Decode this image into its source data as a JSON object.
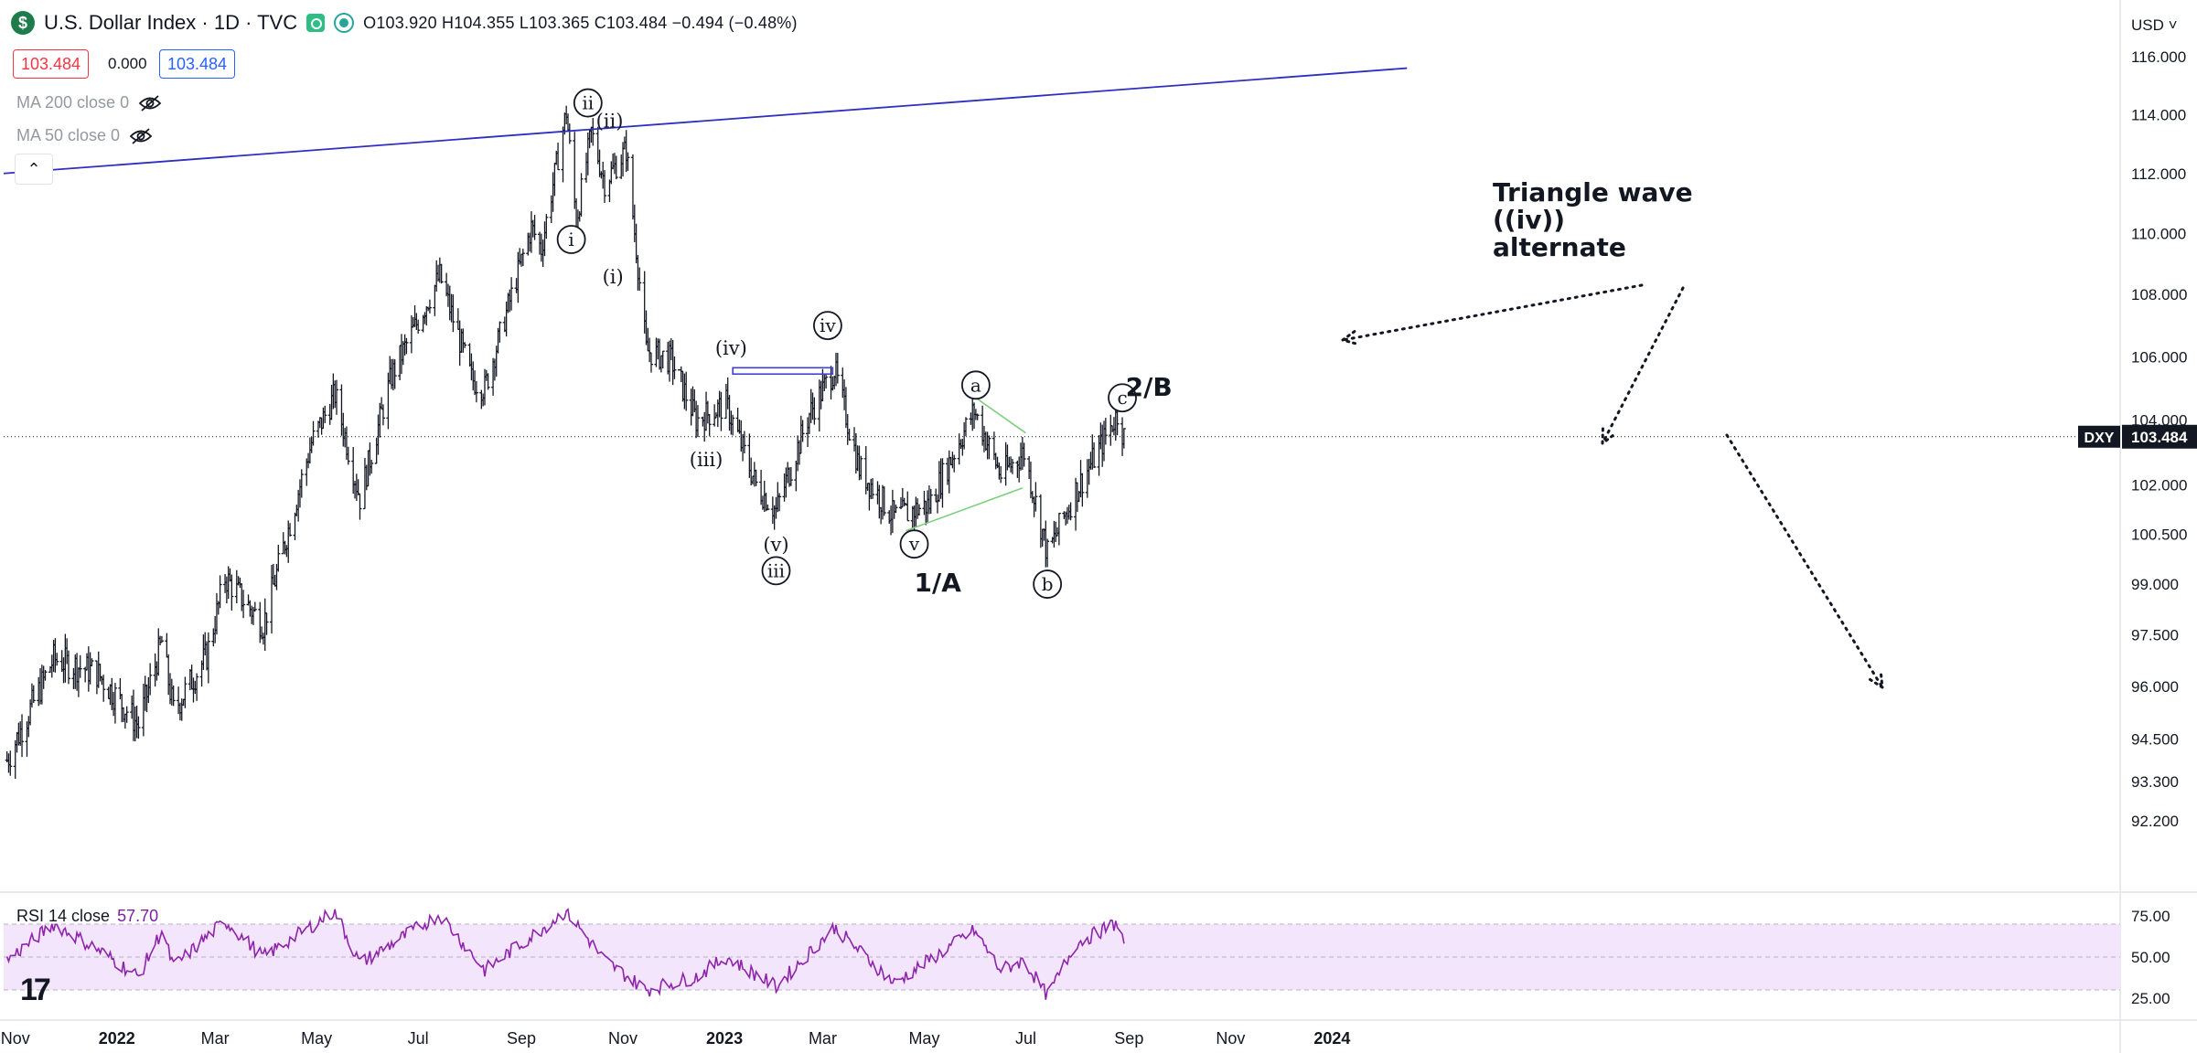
{
  "header": {
    "symbol_badge": "$",
    "title": "U.S. Dollar Index · 1D · TVC",
    "ohlc": "O103.920  H104.355  L103.365  C103.484  −0.494 (−0.48%)",
    "bid": "103.484",
    "spread": "0.000",
    "ask": "103.484",
    "currency": "USD"
  },
  "indicators": {
    "ma200": "MA 200 close 0",
    "ma50": "MA 50 close 0",
    "rsi_name": "RSI 14 close",
    "rsi_value": "57.70",
    "collapse_icon": "chevron-up-icon"
  },
  "colors": {
    "bars": "#131722",
    "trendline": "#2f2fbf",
    "triangle_lines": "#7ccf7c",
    "rsi_line": "#8e24aa",
    "rsi_band": "#f3e5fc",
    "price_tag_bg": "#131722",
    "bid_color": "#f23645",
    "ask_color": "#2962ff"
  },
  "chart_data": {
    "type": "ohlc-bar",
    "title": "U.S. Dollar Index · 1D · TVC",
    "price_axis_ticks": [
      "116.000",
      "114.000",
      "112.000",
      "110.000",
      "108.000",
      "106.000",
      "104.000",
      "102.000",
      "100.500",
      "99.000",
      "97.500",
      "96.000",
      "94.500",
      "93.300",
      "92.200"
    ],
    "time_axis_ticks": [
      "Nov",
      "2022",
      "Mar",
      "May",
      "Jul",
      "Sep",
      "Nov",
      "2023",
      "Mar",
      "May",
      "Jul",
      "Sep",
      "Nov",
      "2024"
    ],
    "price_series_anchors": [
      {
        "date": "2021-10-27",
        "close": 93.9
      },
      {
        "date": "2021-11-24",
        "close": 96.8
      },
      {
        "date": "2021-12-20",
        "close": 96.4
      },
      {
        "date": "2022-01-14",
        "close": 94.9
      },
      {
        "date": "2022-01-28",
        "close": 97.3
      },
      {
        "date": "2022-02-04",
        "close": 95.3
      },
      {
        "date": "2022-02-24",
        "close": 96.9
      },
      {
        "date": "2022-03-07",
        "close": 99.2
      },
      {
        "date": "2022-03-30",
        "close": 97.8
      },
      {
        "date": "2022-04-28",
        "close": 103.3
      },
      {
        "date": "2022-05-12",
        "close": 104.8
      },
      {
        "date": "2022-05-27",
        "close": 101.6
      },
      {
        "date": "2022-06-15",
        "close": 105.4
      },
      {
        "date": "2022-07-14",
        "close": 108.6
      },
      {
        "date": "2022-08-02",
        "close": 105.3
      },
      {
        "date": "2022-08-10",
        "close": 105.0
      },
      {
        "date": "2022-09-07",
        "close": 110.2
      },
      {
        "date": "2022-09-13",
        "close": 109.5
      },
      {
        "date": "2022-09-28",
        "close": 114.1
      },
      {
        "date": "2022-10-04",
        "close": 110.4
      },
      {
        "date": "2022-10-13",
        "close": 113.4
      },
      {
        "date": "2022-10-21",
        "close": 111.7
      },
      {
        "date": "2022-11-03",
        "close": 112.8
      },
      {
        "date": "2022-11-15",
        "close": 106.2
      },
      {
        "date": "2022-11-30",
        "close": 105.9
      },
      {
        "date": "2022-12-15",
        "close": 104.0
      },
      {
        "date": "2023-01-02",
        "close": 104.5
      },
      {
        "date": "2023-01-20",
        "close": 102.0
      },
      {
        "date": "2023-02-01",
        "close": 101.2
      },
      {
        "date": "2023-02-21",
        "close": 104.2
      },
      {
        "date": "2023-03-08",
        "close": 105.6
      },
      {
        "date": "2023-03-23",
        "close": 102.5
      },
      {
        "date": "2023-04-13",
        "close": 101.0
      },
      {
        "date": "2023-05-04",
        "close": 101.4
      },
      {
        "date": "2023-05-31",
        "close": 104.3
      },
      {
        "date": "2023-06-16",
        "close": 102.3
      },
      {
        "date": "2023-06-30",
        "close": 103.0
      },
      {
        "date": "2023-07-14",
        "close": 99.9
      },
      {
        "date": "2023-07-31",
        "close": 101.8
      },
      {
        "date": "2023-08-14",
        "close": 103.1
      },
      {
        "date": "2023-08-25",
        "close": 104.2
      },
      {
        "date": "2023-08-29",
        "close": 103.484
      }
    ],
    "last_price": {
      "label": "DXY",
      "value": "103.484"
    },
    "trendline": {
      "from": {
        "date": "2021-10-25",
        "price": 112.0
      },
      "to": {
        "date": "2024-02-15",
        "price": 115.6
      }
    },
    "wave_labels": [
      {
        "text": "i",
        "date": "2022-10-01",
        "price": 109.8,
        "circled": true
      },
      {
        "text": "ii",
        "date": "2022-10-11",
        "price": 114.4,
        "circled": true
      },
      {
        "text": "(ii)",
        "date": "2022-10-24",
        "price": 113.8,
        "circled": false
      },
      {
        "text": "(i)",
        "date": "2022-10-26",
        "price": 108.6,
        "circled": false
      },
      {
        "text": "(iv)",
        "date": "2023-01-05",
        "price": 106.3,
        "circled": false
      },
      {
        "text": "iv",
        "date": "2023-03-04",
        "price": 107.0,
        "circled": true
      },
      {
        "text": "(iii)",
        "date": "2022-12-21",
        "price": 102.8,
        "circled": false
      },
      {
        "text": "(v)",
        "date": "2023-02-01",
        "price": 100.2,
        "circled": false
      },
      {
        "text": "iii",
        "date": "2023-02-01",
        "price": 99.4,
        "circled": true
      },
      {
        "text": "v",
        "date": "2023-04-25",
        "price": 100.2,
        "circled": true
      },
      {
        "text": "1/A",
        "date": "2023-04-25",
        "price": 99.0,
        "circled": false
      },
      {
        "text": "a",
        "date": "2023-06-01",
        "price": 105.1,
        "circled": true
      },
      {
        "text": "b",
        "date": "2023-07-14",
        "price": 99.0,
        "circled": true
      },
      {
        "text": "c",
        "date": "2023-08-28",
        "price": 104.7,
        "circled": true
      },
      {
        "text": "2/B",
        "date": "2023-08-30",
        "price": 105.0,
        "circled": false
      }
    ],
    "annotations": [
      "Triangle wave",
      "((iv))",
      "alternate"
    ],
    "rsi": {
      "name": "RSI 14 close",
      "last": 57.7,
      "ticks": [
        "75.00",
        "50.00",
        "25.00"
      ],
      "band": [
        30,
        70
      ],
      "anchors": [
        {
          "date": "2021-10-27",
          "value": 48
        },
        {
          "date": "2021-11-24",
          "value": 70
        },
        {
          "date": "2021-12-20",
          "value": 55
        },
        {
          "date": "2022-01-14",
          "value": 38
        },
        {
          "date": "2022-01-28",
          "value": 66
        },
        {
          "date": "2022-02-04",
          "value": 44
        },
        {
          "date": "2022-03-07",
          "value": 72
        },
        {
          "date": "2022-03-30",
          "value": 50
        },
        {
          "date": "2022-05-12",
          "value": 78
        },
        {
          "date": "2022-05-27",
          "value": 46
        },
        {
          "date": "2022-07-14",
          "value": 76
        },
        {
          "date": "2022-08-10",
          "value": 42
        },
        {
          "date": "2022-09-28",
          "value": 78
        },
        {
          "date": "2022-10-21",
          "value": 48
        },
        {
          "date": "2022-11-15",
          "value": 30
        },
        {
          "date": "2022-12-15",
          "value": 38
        },
        {
          "date": "2023-01-02",
          "value": 50
        },
        {
          "date": "2023-02-01",
          "value": 32
        },
        {
          "date": "2023-03-08",
          "value": 68
        },
        {
          "date": "2023-04-13",
          "value": 34
        },
        {
          "date": "2023-05-31",
          "value": 66
        },
        {
          "date": "2023-06-16",
          "value": 42
        },
        {
          "date": "2023-06-30",
          "value": 48
        },
        {
          "date": "2023-07-14",
          "value": 26
        },
        {
          "date": "2023-07-31",
          "value": 58
        },
        {
          "date": "2023-08-25",
          "value": 71
        },
        {
          "date": "2023-08-29",
          "value": 57.7
        }
      ]
    }
  }
}
